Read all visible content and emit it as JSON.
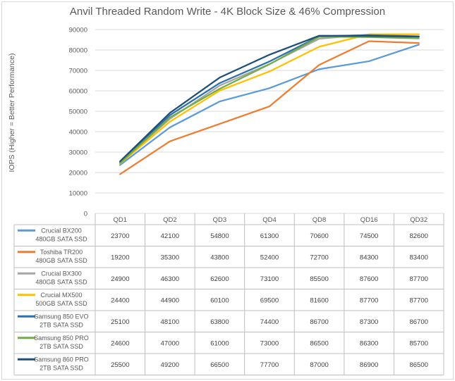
{
  "colors": {
    "Crucial BX200 480GB SATA SSD": "#5b9bd5",
    "Toshiba TR200 480GB SATA SSD": "#ed7d31",
    "Crucial BX300 480GB SATA SSD": "#a5a5a5",
    "Crucial MX500 500GB SATA SSD": "#ffc000",
    "Samsung 850 EVO 2TB SATA SSD": "#2e6fad",
    "Samsung 850 PRO 2TB SATA SSD": "#70ad47",
    "Samsung 860 PRO 2TB SATA SSD": "#1f4e79"
  },
  "chart_data": {
    "type": "line",
    "title": "Anvil Threaded Random Write - 4K Block Size & 46% Compression",
    "ylabel": "IOPS (Higher = Better Performance)",
    "xlabel": "",
    "ylim": [
      0,
      90000
    ],
    "yticks": [
      "0",
      "10000",
      "20000",
      "30000",
      "40000",
      "50000",
      "60000",
      "70000",
      "80000",
      "90000"
    ],
    "grid": true,
    "legend": "data-table",
    "categories": [
      "QD1",
      "QD2",
      "QD3",
      "QD4",
      "QD8",
      "QD16",
      "QD32"
    ],
    "series": [
      {
        "name": "Crucial BX200 480GB SATA SSD",
        "line1": "Crucial BX200",
        "line2": "480GB SATA SSD",
        "values": [
          23700,
          42100,
          54800,
          61300,
          70600,
          74500,
          82600
        ]
      },
      {
        "name": "Toshiba TR200 480GB SATA SSD",
        "line1": "Toshiba TR200",
        "line2": "480GB SATA SSD",
        "values": [
          19200,
          35300,
          43800,
          52400,
          72700,
          84300,
          83400
        ]
      },
      {
        "name": "Crucial BX300 480GB SATA SSD",
        "line1": "Crucial BX300",
        "line2": "480GB SATA SSD",
        "values": [
          24900,
          46300,
          62600,
          73100,
          85500,
          87600,
          87700
        ]
      },
      {
        "name": "Crucial MX500 500GB SATA SSD",
        "line1": "Crucial MX500",
        "line2": "500GB SATA SSD",
        "values": [
          24400,
          44900,
          60100,
          69500,
          81600,
          87700,
          87700
        ]
      },
      {
        "name": "Samsung 850 EVO 2TB SATA SSD",
        "line1": "Samsung 850 EVO",
        "line2": "2TB SATA SSD",
        "values": [
          25100,
          48100,
          63800,
          74400,
          86700,
          87300,
          86700
        ]
      },
      {
        "name": "Samsung 850 PRO 2TB SATA SSD",
        "line1": "Samsung 850 PRO",
        "line2": "2TB SATA SSD",
        "values": [
          24600,
          47000,
          61000,
          73000,
          86500,
          86300,
          85700
        ]
      },
      {
        "name": "Samsung 860 PRO 2TB SATA SSD",
        "line1": "Samsung 860 PRO",
        "line2": "2TB SATA SSD",
        "values": [
          25500,
          49200,
          66500,
          77700,
          87000,
          86900,
          86500
        ]
      }
    ]
  }
}
